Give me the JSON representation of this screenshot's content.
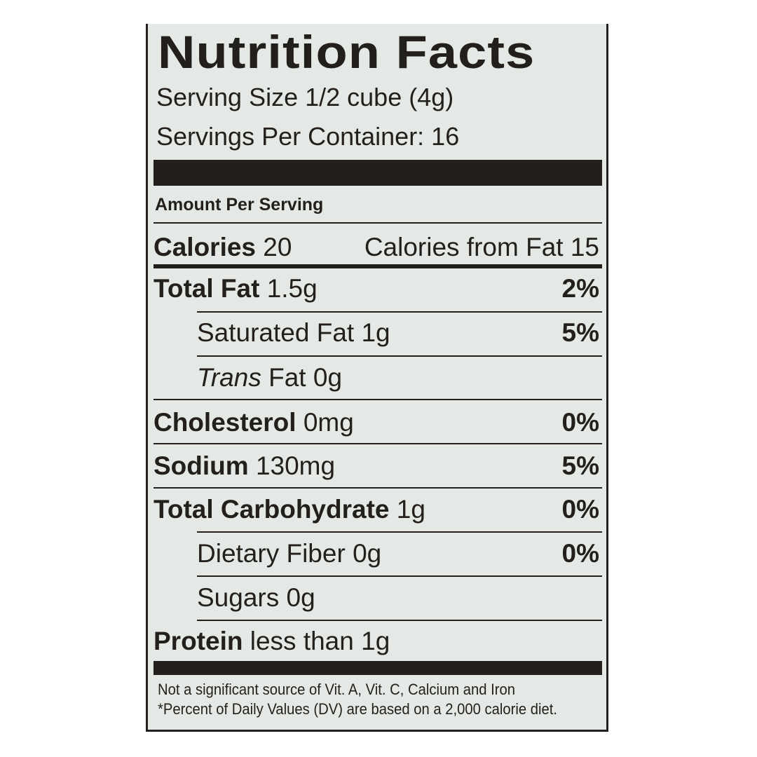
{
  "title": "Nutrition Facts",
  "serving_size": "Serving Size 1/2 cube (4g)",
  "servings_per_container": "Servings Per Container: 16",
  "amount_per_serving": "Amount Per Serving",
  "calories": {
    "label": "Calories",
    "value": "20",
    "from_fat": "Calories from Fat 15"
  },
  "rows": [
    {
      "label": "Total Fat",
      "amount": "1.5g",
      "dv": "2%"
    },
    {
      "label": "Saturated Fat",
      "amount": "1g",
      "dv": "5%"
    },
    {
      "label": "Trans",
      "amount": "Fat 0g",
      "dv": ""
    },
    {
      "label": "Cholesterol",
      "amount": "0mg",
      "dv": "0%"
    },
    {
      "label": "Sodium",
      "amount": "130mg",
      "dv": "5%"
    },
    {
      "label": "Total Carbohydrate",
      "amount": "1g",
      "dv": "0%"
    },
    {
      "label": "Dietary Fiber",
      "amount": "0g",
      "dv": "0%"
    },
    {
      "label": "Sugars",
      "amount": "0g",
      "dv": ""
    },
    {
      "label": "Protein",
      "amount": "less than 1g",
      "dv": ""
    }
  ],
  "footnote_1": "Not a significant source of Vit. A, Vit. C, Calcium and Iron",
  "footnote_2": "*Percent of Daily Values (DV) are based on a 2,000 calorie diet."
}
